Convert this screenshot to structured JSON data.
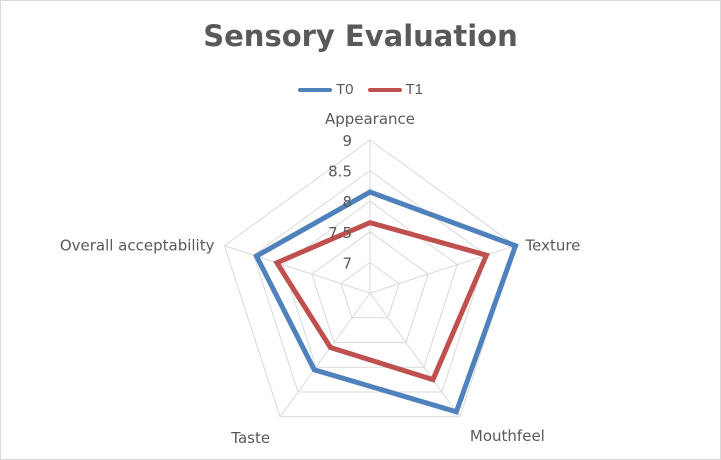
{
  "chart_data": {
    "type": "radar",
    "title": "Sensory Evaluation",
    "categories": [
      "Appearance",
      "Texture",
      "Mouthfeel",
      "Taste",
      "Overall acceptability"
    ],
    "radial_ticks": [
      7,
      7.5,
      8,
      8.5,
      9
    ],
    "rlim": [
      6.5,
      9
    ],
    "legend_position": "top",
    "grid": true,
    "series": [
      {
        "name": "T0",
        "color": "#4f81bd",
        "values": [
          8.15,
          9.0,
          8.9,
          8.05,
          8.45
        ]
      },
      {
        "name": "T1",
        "color": "#c0504d",
        "values": [
          7.65,
          8.5,
          8.25,
          7.6,
          8.1
        ]
      }
    ]
  },
  "colors": {
    "grid": "#d9d9d9",
    "text": "#595959"
  }
}
